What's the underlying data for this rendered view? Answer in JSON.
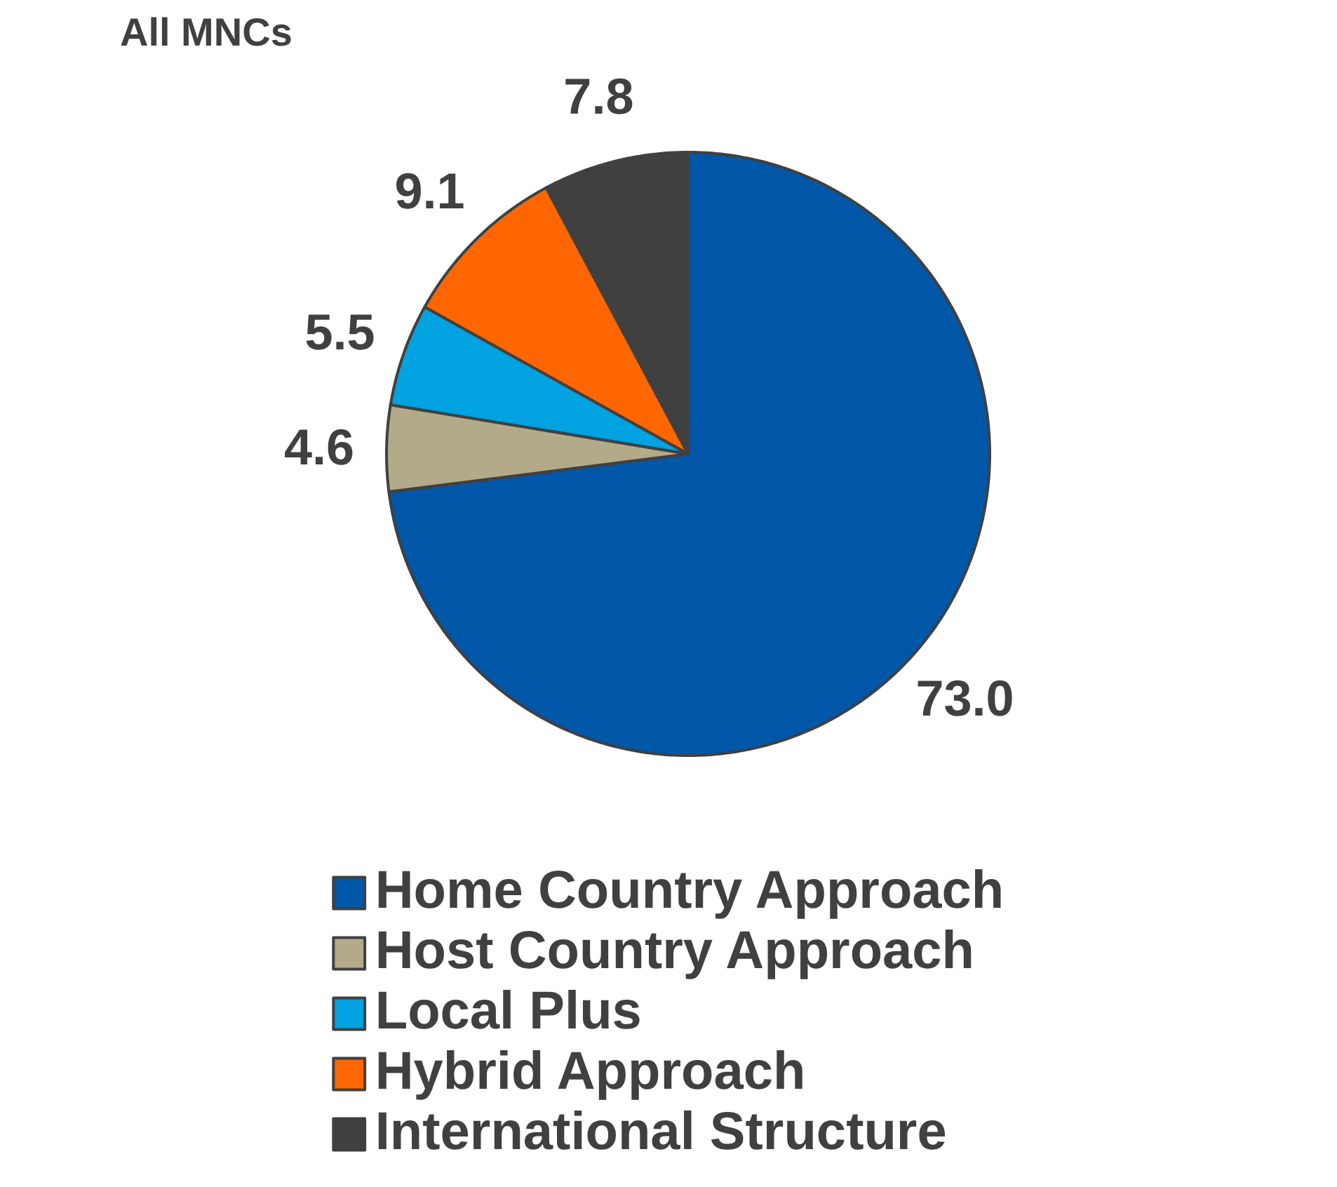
{
  "chart_data": {
    "type": "pie",
    "title": "All MNCs",
    "categories": [
      "Home Country Approach",
      "Host Country Approach",
      "Local Plus",
      "Hybrid Approach",
      "International Structure"
    ],
    "values": [
      73.0,
      4.6,
      5.5,
      9.1,
      7.8
    ],
    "colors": [
      "#0057a8",
      "#b3aa8a",
      "#00a2e0",
      "#ff6600",
      "#404040"
    ],
    "value_labels": [
      "73.0",
      "4.6",
      "5.5",
      "9.1",
      "7.8"
    ],
    "legend": "bottom"
  }
}
